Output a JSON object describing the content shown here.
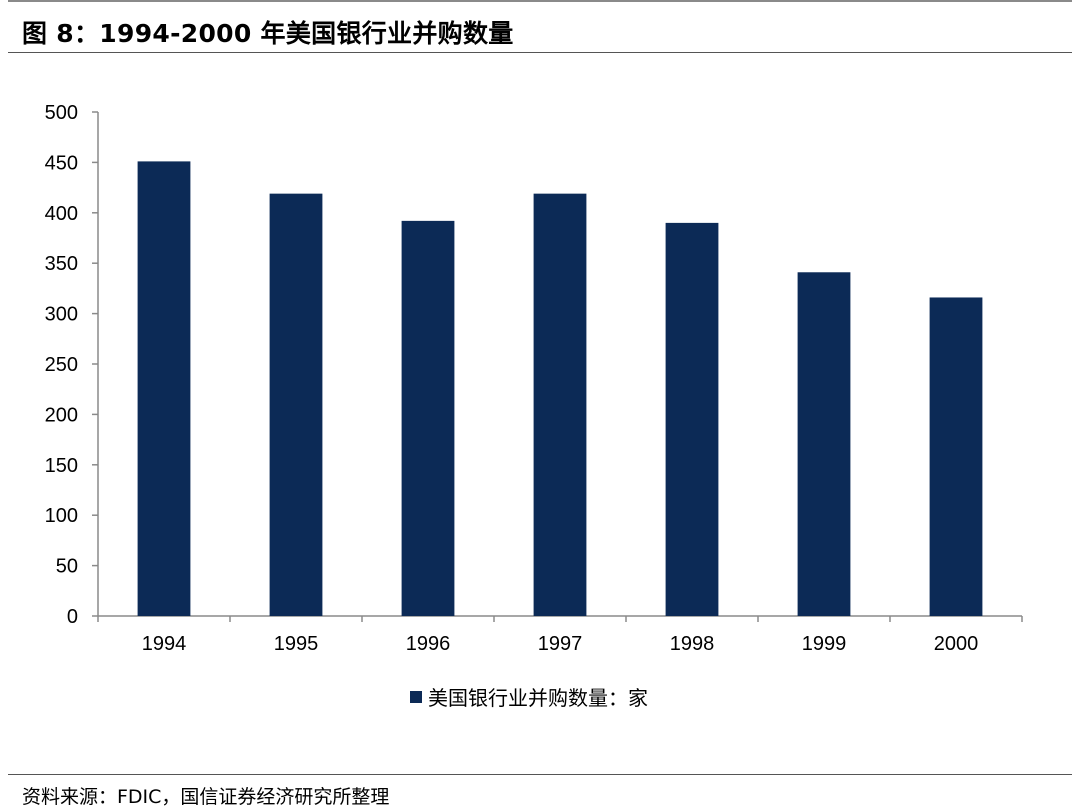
{
  "figure": {
    "title": "图 8：1994-2000 年美国银行业并购数量",
    "source": "资料来源：FDIC，国信证券经济研究所整理"
  },
  "colors": {
    "bar": "#0c2a56",
    "axis": "#8a8a8a"
  },
  "chart_data": {
    "type": "bar",
    "categories": [
      "1994",
      "1995",
      "1996",
      "1997",
      "1998",
      "1999",
      "2000"
    ],
    "series": [
      {
        "name": "美国银行业并购数量：家",
        "values": [
          451,
          419,
          392,
          419,
          390,
          341,
          316
        ]
      }
    ],
    "ylim": [
      0,
      500
    ],
    "yticks": [
      0,
      50,
      100,
      150,
      200,
      250,
      300,
      350,
      400,
      450,
      500
    ],
    "grid": false,
    "legend_position": "bottom"
  }
}
